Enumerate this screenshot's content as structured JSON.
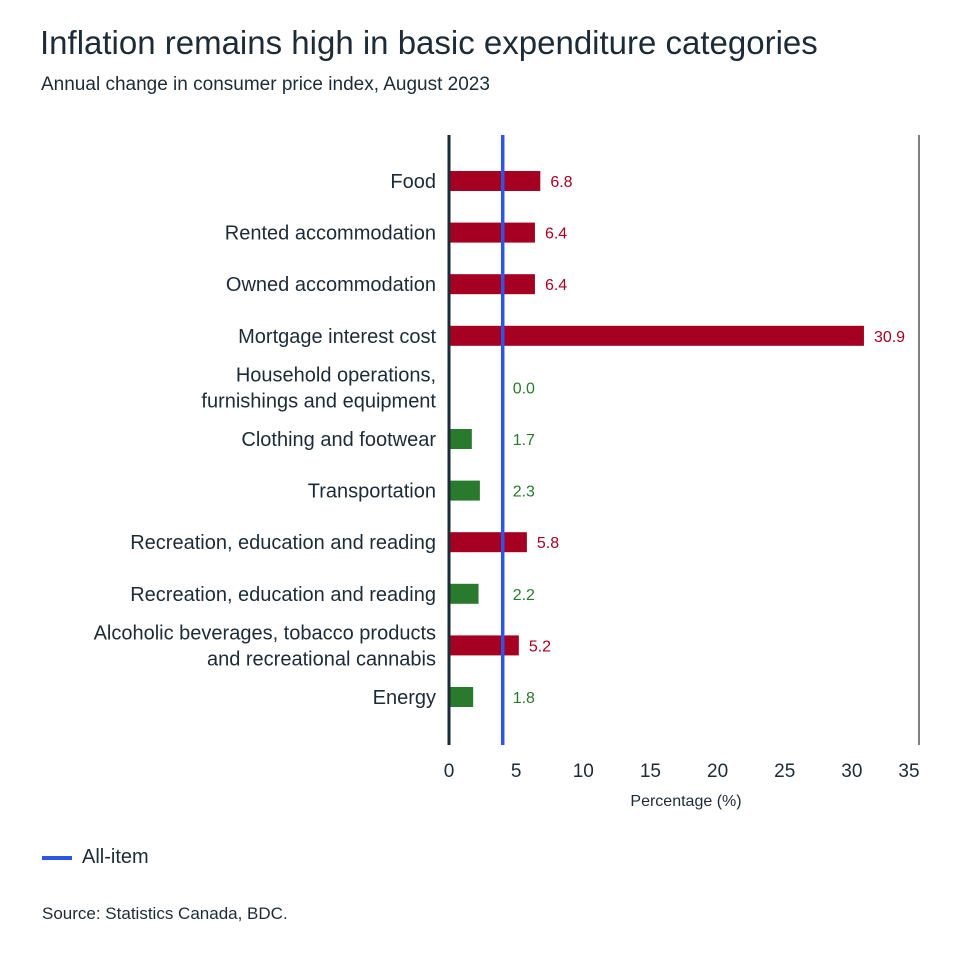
{
  "title": "Inflation remains high in basic expenditure categories",
  "subtitle": "Annual change in consumer price index, August 2023",
  "legend": {
    "all_item_label": "All-item"
  },
  "source": "Source: Statistics Canada, BDC.",
  "colors": {
    "above": "#a50021",
    "below": "#2a7a2e",
    "all_item": "#2d55e6",
    "axis": "#1c2b36"
  },
  "chart_data": {
    "type": "bar",
    "orientation": "horizontal",
    "title": "Inflation remains high in basic expenditure categories",
    "subtitle": "Annual change in consumer price index, August 2023",
    "xlabel": "Percentage (%)",
    "ylabel": "",
    "xlim": [
      0,
      35
    ],
    "xticks": [
      0,
      5,
      10,
      15,
      20,
      25,
      30,
      35
    ],
    "grid": false,
    "legend_placement": "bottom-left",
    "reference_line": {
      "name": "All-item",
      "value": 4.0
    },
    "categories": [
      [
        "Food"
      ],
      [
        "Rented accommodation"
      ],
      [
        "Owned accommodation"
      ],
      [
        "Mortgage interest cost"
      ],
      [
        "Household operations,",
        "furnishings and equipment"
      ],
      [
        "Clothing and footwear"
      ],
      [
        "Transportation"
      ],
      [
        "Recreation, education and reading"
      ],
      [
        "Recreation, education and reading"
      ],
      [
        "Alcoholic beverages, tobacco products",
        "and recreational cannabis"
      ],
      [
        "Energy"
      ]
    ],
    "values": [
      6.8,
      6.4,
      6.4,
      30.9,
      0.0,
      1.7,
      2.3,
      5.8,
      2.2,
      5.2,
      1.8
    ],
    "value_labels": [
      "6.8",
      "6.4",
      "6.4",
      "30.9",
      "0.0",
      "1.7",
      "2.3",
      "5.8",
      "2.2",
      "5.2",
      "1.8"
    ]
  }
}
